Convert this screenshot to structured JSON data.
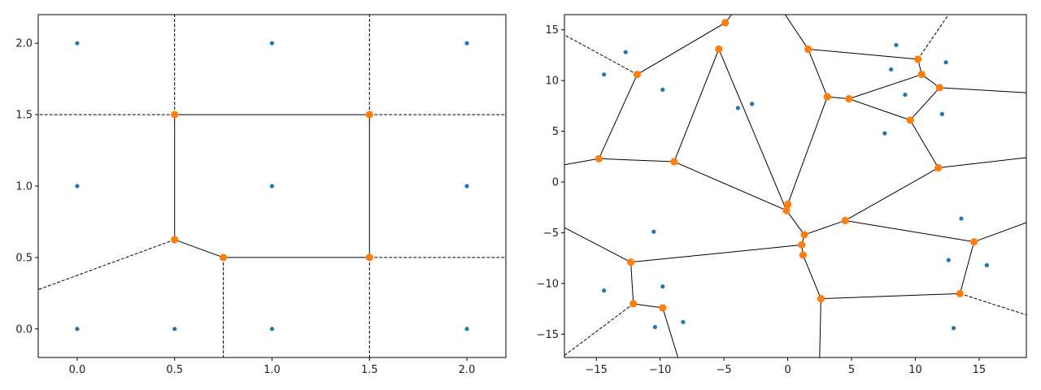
{
  "colors": {
    "point": "#1f77b4",
    "vertex": "#ff7f0e",
    "edge": "#000000",
    "background": "#ffffff"
  },
  "chart_data": [
    {
      "type": "scatter",
      "subtype": "voronoi-diagram",
      "title": "",
      "xlabel": "",
      "ylabel": "",
      "xlim": [
        -0.2,
        2.2
      ],
      "ylim": [
        -0.2,
        2.2
      ],
      "x_ticks": [
        "0.0",
        "0.5",
        "1.0",
        "1.5",
        "2.0"
      ],
      "y_ticks": [
        "0.0",
        "0.5",
        "1.0",
        "1.5",
        "2.0"
      ],
      "grid": false,
      "points": [
        [
          0,
          0
        ],
        [
          0.5,
          0
        ],
        [
          1,
          0
        ],
        [
          2,
          0
        ],
        [
          0,
          1
        ],
        [
          1,
          1
        ],
        [
          2,
          1
        ],
        [
          0,
          2
        ],
        [
          1,
          2
        ],
        [
          2,
          2
        ]
      ],
      "vertices": [
        [
          0.5,
          1.5
        ],
        [
          1.5,
          1.5
        ],
        [
          0.5,
          0.625
        ],
        [
          0.75,
          0.5
        ],
        [
          1.5,
          0.5
        ]
      ],
      "finite_edges": [
        [
          [
            0.5,
            1.5
          ],
          [
            1.5,
            1.5
          ]
        ],
        [
          [
            0.5,
            1.5
          ],
          [
            0.5,
            0.625
          ]
        ],
        [
          [
            1.5,
            1.5
          ],
          [
            1.5,
            0.5
          ]
        ],
        [
          [
            0.5,
            0.625
          ],
          [
            0.75,
            0.5
          ]
        ],
        [
          [
            0.75,
            0.5
          ],
          [
            1.5,
            0.5
          ]
        ]
      ],
      "infinite_edges": [
        [
          [
            0.5,
            1.5
          ],
          [
            0.5,
            2.2
          ]
        ],
        [
          [
            0.5,
            1.5
          ],
          [
            -0.2,
            1.5
          ]
        ],
        [
          [
            1.5,
            1.5
          ],
          [
            1.5,
            2.2
          ]
        ],
        [
          [
            1.5,
            1.5
          ],
          [
            2.2,
            1.5
          ]
        ],
        [
          [
            0.5,
            0.625
          ],
          [
            -0.2,
            0.275
          ]
        ],
        [
          [
            0.75,
            0.5
          ],
          [
            0.75,
            -0.2
          ]
        ],
        [
          [
            1.5,
            0.5
          ],
          [
            1.5,
            -0.2
          ]
        ],
        [
          [
            1.5,
            0.5
          ],
          [
            2.2,
            0.5
          ]
        ]
      ]
    },
    {
      "type": "scatter",
      "subtype": "voronoi-diagram",
      "title": "",
      "xlabel": "",
      "ylabel": "",
      "xlim": [
        -17.5,
        18.7
      ],
      "ylim": [
        -17.3,
        16.5
      ],
      "x_ticks": [
        "−15",
        "−10",
        "−5",
        "0",
        "5",
        "10",
        "15"
      ],
      "y_ticks": [
        "−15",
        "−10",
        "−5",
        "0",
        "5",
        "10",
        "15"
      ],
      "grid": false,
      "points": [
        [
          -14.4,
          10.6
        ],
        [
          -12.7,
          12.8
        ],
        [
          -9.8,
          9.1
        ],
        [
          -3.9,
          7.3
        ],
        [
          -2.8,
          7.7
        ],
        [
          8.5,
          13.5
        ],
        [
          12.4,
          11.8
        ],
        [
          8.1,
          11.1
        ],
        [
          9.2,
          8.6
        ],
        [
          12.1,
          6.7
        ],
        [
          7.6,
          4.8
        ],
        [
          -10.5,
          -4.9
        ],
        [
          -14.4,
          -10.7
        ],
        [
          -9.8,
          -10.3
        ],
        [
          -10.4,
          -14.3
        ],
        [
          -8.2,
          -13.8
        ],
        [
          13.6,
          -3.6
        ],
        [
          12.6,
          -7.7
        ],
        [
          15.6,
          -8.2
        ],
        [
          13.0,
          -14.4
        ]
      ],
      "vertices": [
        [
          -4.9,
          15.7
        ],
        [
          -5.4,
          13.1
        ],
        [
          -11.8,
          10.6
        ],
        [
          -14.8,
          2.3
        ],
        [
          -8.9,
          2.0
        ],
        [
          1.6,
          13.1
        ],
        [
          3.1,
          8.4
        ],
        [
          4.8,
          8.2
        ],
        [
          10.2,
          12.1
        ],
        [
          10.5,
          10.6
        ],
        [
          11.9,
          9.3
        ],
        [
          9.6,
          6.1
        ],
        [
          11.8,
          1.4
        ],
        [
          0.0,
          -2.2
        ],
        [
          -0.1,
          -2.8
        ],
        [
          1.3,
          -5.2
        ],
        [
          4.5,
          -3.8
        ],
        [
          14.6,
          -5.9
        ],
        [
          1.1,
          -6.2
        ],
        [
          1.2,
          -7.2
        ],
        [
          -12.3,
          -7.9
        ],
        [
          -12.1,
          -12.0
        ],
        [
          -9.8,
          -12.4
        ],
        [
          2.6,
          -11.5
        ],
        [
          13.5,
          -11.0
        ]
      ],
      "finite_edges": [
        [
          [
            -4.9,
            15.7
          ],
          [
            -11.8,
            10.6
          ]
        ],
        [
          [
            -4.9,
            15.7
          ],
          [
            -4.4,
            16.5
          ]
        ],
        [
          [
            -11.8,
            10.6
          ],
          [
            -14.8,
            2.3
          ]
        ],
        [
          [
            -14.8,
            2.3
          ],
          [
            -8.9,
            2.0
          ]
        ],
        [
          [
            -14.8,
            2.3
          ],
          [
            -17.5,
            1.7
          ]
        ],
        [
          [
            -5.4,
            13.1
          ],
          [
            -8.9,
            2.0
          ]
        ],
        [
          [
            -5.4,
            13.1
          ],
          [
            -0.1,
            -2.8
          ]
        ],
        [
          [
            -8.9,
            2.0
          ],
          [
            -0.1,
            -2.8
          ]
        ],
        [
          [
            -0.1,
            -2.8
          ],
          [
            0.0,
            -2.2
          ]
        ],
        [
          [
            0.0,
            -2.2
          ],
          [
            3.1,
            8.4
          ]
        ],
        [
          [
            -0.1,
            -2.8
          ],
          [
            1.3,
            -5.2
          ]
        ],
        [
          [
            1.6,
            13.1
          ],
          [
            -0.2,
            16.5
          ]
        ],
        [
          [
            1.6,
            13.1
          ],
          [
            3.1,
            8.4
          ]
        ],
        [
          [
            1.6,
            13.1
          ],
          [
            10.2,
            12.1
          ]
        ],
        [
          [
            3.1,
            8.4
          ],
          [
            4.8,
            8.2
          ]
        ],
        [
          [
            4.8,
            8.2
          ],
          [
            10.5,
            10.6
          ]
        ],
        [
          [
            4.8,
            8.2
          ],
          [
            9.6,
            6.1
          ]
        ],
        [
          [
            10.2,
            12.1
          ],
          [
            10.5,
            10.6
          ]
        ],
        [
          [
            10.5,
            10.6
          ],
          [
            11.9,
            9.3
          ]
        ],
        [
          [
            11.9,
            9.3
          ],
          [
            9.6,
            6.1
          ]
        ],
        [
          [
            11.9,
            9.3
          ],
          [
            18.7,
            8.8
          ]
        ],
        [
          [
            9.6,
            6.1
          ],
          [
            11.8,
            1.4
          ]
        ],
        [
          [
            11.8,
            1.4
          ],
          [
            4.5,
            -3.8
          ]
        ],
        [
          [
            11.8,
            1.4
          ],
          [
            18.7,
            2.4
          ]
        ],
        [
          [
            1.3,
            -5.2
          ],
          [
            4.5,
            -3.8
          ]
        ],
        [
          [
            4.5,
            -3.8
          ],
          [
            14.6,
            -5.9
          ]
        ],
        [
          [
            14.6,
            -5.9
          ],
          [
            18.7,
            -4.0
          ]
        ],
        [
          [
            14.6,
            -5.9
          ],
          [
            13.5,
            -11.0
          ]
        ],
        [
          [
            1.3,
            -5.2
          ],
          [
            1.1,
            -6.2
          ]
        ],
        [
          [
            1.1,
            -6.2
          ],
          [
            1.2,
            -7.2
          ]
        ],
        [
          [
            1.1,
            -6.2
          ],
          [
            -12.3,
            -7.9
          ]
        ],
        [
          [
            -12.3,
            -7.9
          ],
          [
            -17.5,
            -4.5
          ]
        ],
        [
          [
            -12.3,
            -7.9
          ],
          [
            -12.1,
            -12.0
          ]
        ],
        [
          [
            -12.1,
            -12.0
          ],
          [
            -9.8,
            -12.4
          ]
        ],
        [
          [
            -9.8,
            -12.4
          ],
          [
            -8.6,
            -17.3
          ]
        ],
        [
          [
            1.2,
            -7.2
          ],
          [
            2.6,
            -11.5
          ]
        ],
        [
          [
            2.6,
            -11.5
          ],
          [
            13.5,
            -11.0
          ]
        ],
        [
          [
            2.6,
            -11.5
          ],
          [
            2.5,
            -17.3
          ]
        ]
      ],
      "infinite_edges": [
        [
          [
            -11.8,
            10.6
          ],
          [
            -17.5,
            14.5
          ]
        ],
        [
          [
            10.2,
            12.1
          ],
          [
            12.6,
            16.5
          ]
        ],
        [
          [
            13.5,
            -11.0
          ],
          [
            18.7,
            -13.1
          ]
        ],
        [
          [
            -12.1,
            -12.0
          ],
          [
            -17.5,
            -17.1
          ]
        ]
      ]
    }
  ]
}
